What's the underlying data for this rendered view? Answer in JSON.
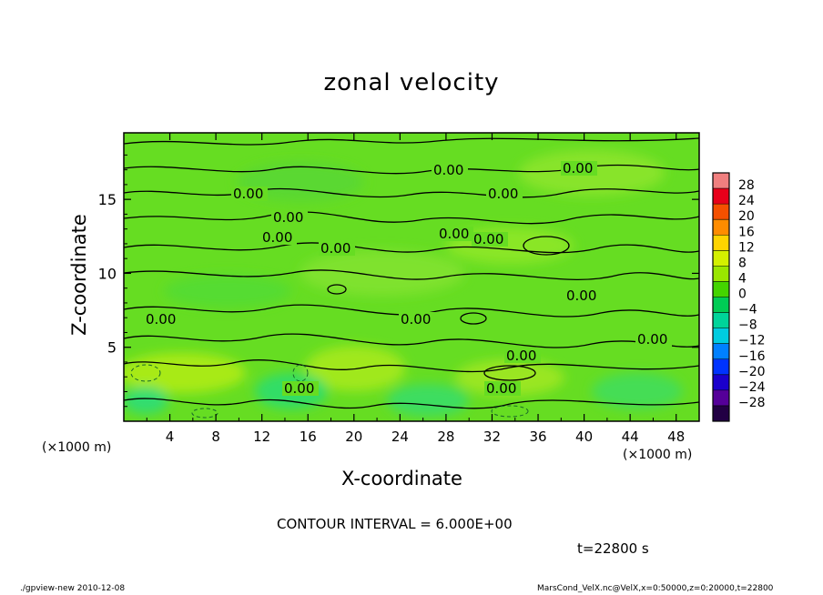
{
  "chart_data": {
    "type": "heatmap",
    "title": "zonal velocity",
    "xlabel": "X-coordinate",
    "ylabel": "Z-coordinate",
    "x_unit_label": "(×1000 m)",
    "xlim": [
      0,
      50
    ],
    "ylim": [
      0,
      19.5
    ],
    "x_ticks": [
      "4",
      "8",
      "12",
      "16",
      "20",
      "24",
      "28",
      "32",
      "36",
      "40",
      "44",
      "48"
    ],
    "y_ticks": [
      "5",
      "10",
      "15"
    ],
    "colorbar_labels": [
      "28",
      "24",
      "20",
      "16",
      "12",
      "8",
      "4",
      "0",
      "−4",
      "−8",
      "−12",
      "−16",
      "−20",
      "−24",
      "−28"
    ],
    "colorbar_colors": [
      "#f07f7f",
      "#e8001a",
      "#f55000",
      "#ff8c00",
      "#ffd400",
      "#d4f000",
      "#9ae600",
      "#44d400",
      "#00cc55",
      "#00d49a",
      "#00cce0",
      "#0080ff",
      "#0033ff",
      "#1a00cc",
      "#550099",
      "#220044"
    ],
    "contour_labels": [
      "0.00",
      "0.00",
      "0.00",
      "0.00",
      "0.00",
      "0.00",
      "0.00",
      "0.00",
      "0.00",
      "0.00",
      "0.00",
      "0.00",
      "0.00",
      "0.00",
      "0.00",
      "0.00"
    ],
    "contour_interval_text": "CONTOUR INTERVAL = 6.000E+00",
    "time_text": "t=22800 s"
  },
  "footer": {
    "left": "./gpview-new   2010-12-08",
    "right": "MarsCond_VelX.nc@VelX,x=0:50000,z=0:20000,t=22800"
  }
}
